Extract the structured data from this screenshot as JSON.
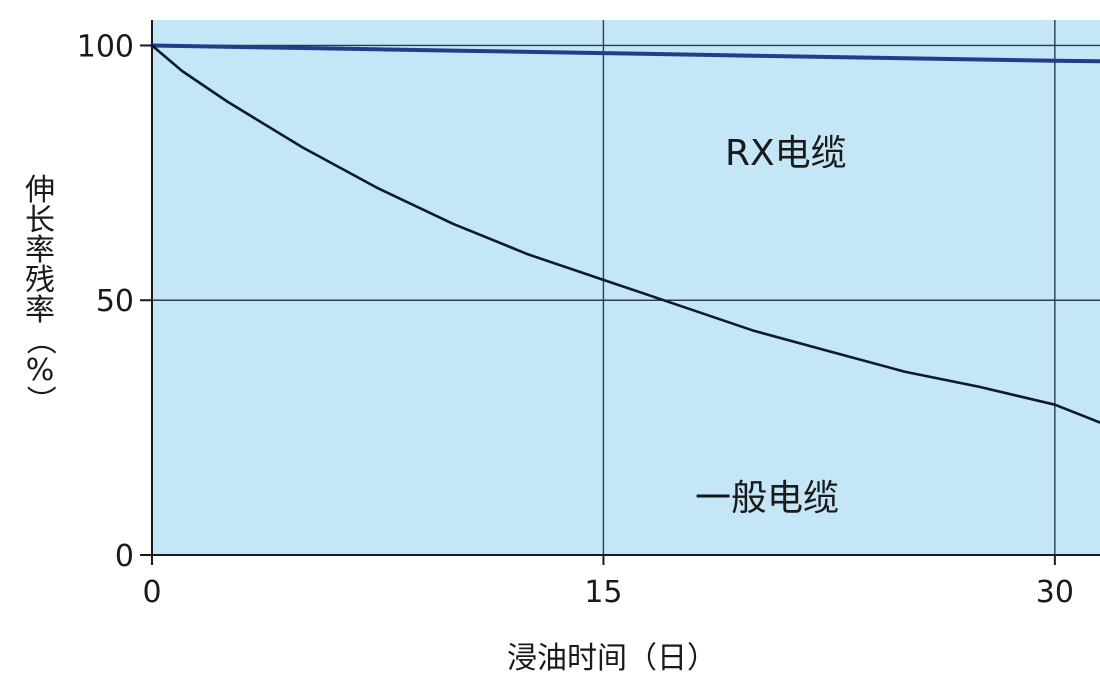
{
  "chart_data": {
    "type": "line",
    "title": "",
    "xlabel": "浸油时间（日）",
    "ylabel_chars": [
      "伸",
      "长",
      "率",
      "残",
      "率",
      "（",
      "%",
      "）"
    ],
    "xlim": [
      0,
      31.5
    ],
    "ylim": [
      0,
      105
    ],
    "x_ticks": [
      "0",
      "15",
      "30"
    ],
    "y_ticks": [
      "0",
      "50",
      "100"
    ],
    "grid": true,
    "background_color": "#c5e6f7",
    "series": [
      {
        "name": "RX电缆",
        "color": "#1f3f8a",
        "x": [
          0,
          5,
          10,
          15,
          20,
          25,
          30,
          31.5
        ],
        "y": [
          100,
          99.5,
          99.0,
          98.5,
          98.0,
          97.5,
          97.0,
          96.9
        ]
      },
      {
        "name": "一般电缆",
        "color": "#0f1a30",
        "x": [
          0,
          1,
          2.5,
          5,
          7.5,
          10,
          12.5,
          15,
          17.5,
          20,
          22.5,
          25,
          27.5,
          30,
          31.5
        ],
        "y": [
          100,
          95,
          89,
          80,
          72,
          65,
          59,
          54,
          49,
          44,
          40,
          36,
          33,
          29.5,
          26
        ]
      }
    ]
  }
}
